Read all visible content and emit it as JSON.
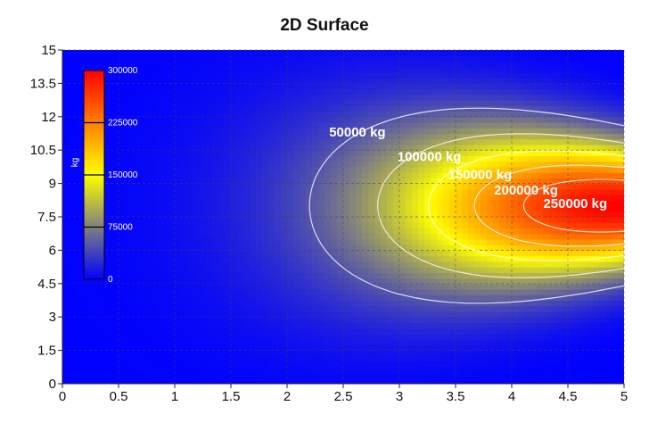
{
  "chart_data": {
    "type": "heatmap",
    "title": "2D Surface",
    "xlabel": "",
    "ylabel": "",
    "xlim": [
      0,
      5
    ],
    "ylim": [
      0,
      15
    ],
    "x_ticks": [
      "0",
      "0.5",
      "1",
      "1.5",
      "2",
      "2.5",
      "3",
      "3.5",
      "4",
      "4.5",
      "5"
    ],
    "y_ticks": [
      "0",
      "1.5",
      "3",
      "4.5",
      "6",
      "7.5",
      "9",
      "10.5",
      "12",
      "13.5",
      "15"
    ],
    "grid": true,
    "z_range": [
      0,
      300000
    ],
    "colorbar": {
      "unit": "kg",
      "placement": "top-left",
      "ticks": [
        "0",
        "75000",
        "150000",
        "225000",
        "300000"
      ],
      "colors": [
        "#0000ff",
        "#ffff00",
        "#ff0000"
      ]
    },
    "contours": [
      {
        "level": 50000,
        "label": "50000 kg"
      },
      {
        "level": 100000,
        "label": "100000 kg"
      },
      {
        "level": 150000,
        "label": "150000 kg"
      },
      {
        "level": 200000,
        "label": "200000 kg"
      },
      {
        "level": 250000,
        "label": "250000 kg"
      }
    ],
    "surface": {
      "peak": {
        "x": 5,
        "y": 8,
        "z": 300000
      },
      "left_edge_x_at_50000": 2.2
    }
  }
}
